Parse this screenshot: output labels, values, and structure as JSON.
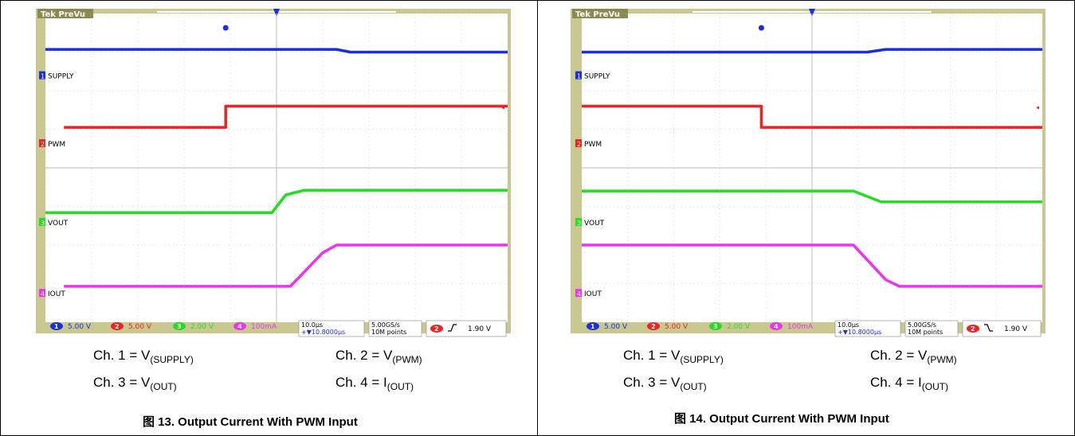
{
  "colors": {
    "frame": "#c8c890",
    "screen": "#ffffff",
    "grid": "#b8b8b8",
    "ch1": "#1a2ee0",
    "ch2": "#ee2222",
    "ch3": "#22dd22",
    "ch4": "#ee33ee",
    "bar_bg": "#c8c890",
    "bar_text": "#1a2ee0"
  },
  "panels": [
    {
      "id": "left",
      "header": "Tek PreVu",
      "channel_labels": [
        "SUPPLY",
        "PWM",
        "VOUT",
        "IOUT"
      ],
      "bottom_bar": {
        "ch1": "5.00 V",
        "ch2": "5.00 V",
        "ch3": "2.00 V",
        "ch4": "100mA",
        "timebase": "10.0µs",
        "offset": "+▼10.8000µs",
        "rate": "5.00GS/s",
        "points": "10M points",
        "trigger_level": "1.90 V",
        "trigger_edge": "rising"
      },
      "captions": {
        "c1_pre": "Ch. 1 = V",
        "c1_sub": "(SUPPLY)",
        "c2_pre": "Ch. 2 = V",
        "c2_sub": "(PWM)",
        "c3_pre": "Ch. 3 = V",
        "c3_sub": "(OUT)",
        "c4_pre": "Ch. 4 = I",
        "c4_sub": "(OUT)"
      },
      "figure_title": "图 13. Output Current With PWM Input"
    },
    {
      "id": "right",
      "header": "Tek PreVu",
      "channel_labels": [
        "SUPPLY",
        "PWM",
        "VOUT",
        "IOUT"
      ],
      "bottom_bar": {
        "ch1": "5.00 V",
        "ch2": "5.00 V",
        "ch3": "2.00 V",
        "ch4": "100mA",
        "timebase": "10.0µs",
        "offset": "+▼10.8000µs",
        "rate": "5.00GS/s",
        "points": "10M points",
        "trigger_level": "1.90 V",
        "trigger_edge": "falling"
      },
      "captions": {
        "c1_pre": "Ch. 1 = V",
        "c1_sub": "(SUPPLY)",
        "c2_pre": "Ch. 2 = V",
        "c2_sub": "(PWM)",
        "c3_pre": "Ch. 3 = V",
        "c3_sub": "(OUT)",
        "c4_pre": "Ch. 4 = I",
        "c4_sub": "(OUT)"
      },
      "figure_title": "图 14. Output Current With PWM Input"
    }
  ],
  "chart_data": [
    {
      "type": "line",
      "title": "图 13. Output Current With PWM Input",
      "xlabel": "",
      "ylabel": "",
      "x_unit": "divisions (10.0µs/div)",
      "xlim": [
        0,
        10
      ],
      "ylim": [
        0,
        8
      ],
      "grid": true,
      "series": [
        {
          "name": "SUPPLY",
          "x": [
            0,
            6.3,
            6.6,
            10
          ],
          "y": [
            7.07,
            7.07,
            7.0,
            7.0
          ]
        },
        {
          "name": "PWM",
          "x": [
            0.4,
            3.9,
            3.9,
            10
          ],
          "y": [
            5.05,
            5.05,
            5.6,
            5.6
          ]
        },
        {
          "name": "VOUT",
          "x": [
            0,
            4.9,
            5.2,
            5.6,
            10
          ],
          "y": [
            2.84,
            2.84,
            3.3,
            3.42,
            3.42
          ]
        },
        {
          "name": "IOUT",
          "x": [
            0.4,
            5.3,
            6.0,
            6.3,
            10
          ],
          "y": [
            0.93,
            0.93,
            1.8,
            2.0,
            2.0
          ]
        }
      ]
    },
    {
      "type": "line",
      "title": "图 14. Output Current With PWM Input",
      "xlabel": "",
      "ylabel": "",
      "x_unit": "divisions (10.0µs/div)",
      "xlim": [
        0,
        10
      ],
      "ylim": [
        0,
        8
      ],
      "grid": true,
      "series": [
        {
          "name": "SUPPLY",
          "x": [
            0,
            6.2,
            6.6,
            10
          ],
          "y": [
            7.0,
            7.0,
            7.07,
            7.07
          ]
        },
        {
          "name": "PWM",
          "x": [
            0,
            3.9,
            3.9,
            10
          ],
          "y": [
            5.6,
            5.6,
            5.05,
            5.05
          ]
        },
        {
          "name": "VOUT",
          "x": [
            0,
            5.9,
            6.5,
            10
          ],
          "y": [
            3.4,
            3.4,
            3.12,
            3.12
          ]
        },
        {
          "name": "IOUT",
          "x": [
            0,
            5.9,
            6.6,
            6.9,
            10
          ],
          "y": [
            2.0,
            2.0,
            1.1,
            0.93,
            0.93
          ]
        }
      ]
    }
  ]
}
